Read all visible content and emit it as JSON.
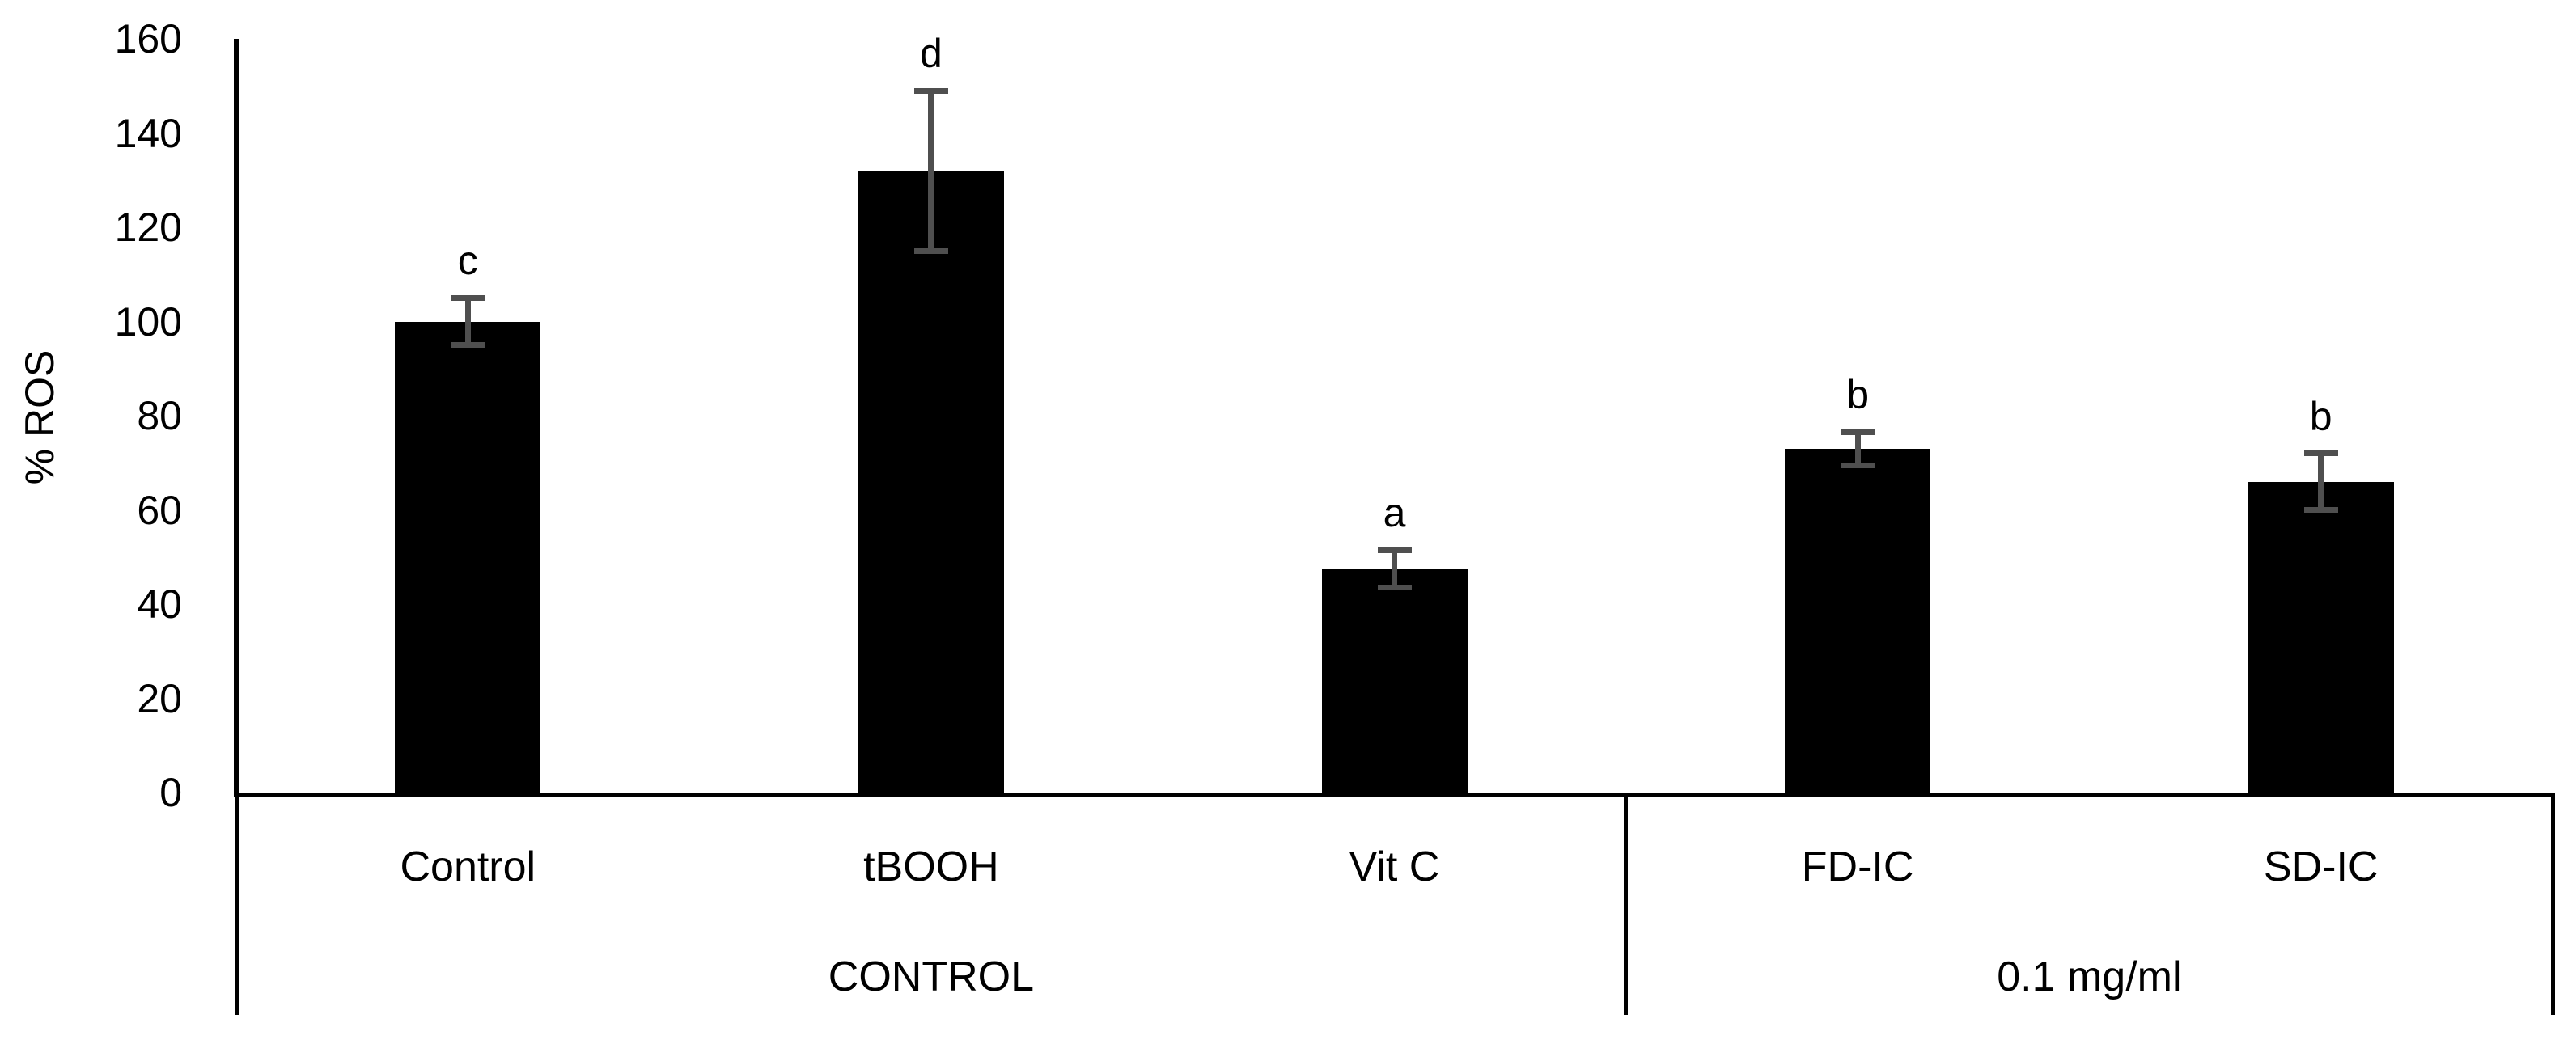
{
  "chart_data": {
    "type": "bar",
    "title": "",
    "xlabel": "",
    "ylabel": "% ROS",
    "ylim": [
      0,
      160
    ],
    "yticks": [
      0,
      20,
      40,
      60,
      80,
      100,
      120,
      140,
      160
    ],
    "grid": false,
    "legend": null,
    "bar_color": "#000000",
    "error_bar_color": "#4f4f4f",
    "axis_color": "#000000",
    "categories": [
      "Control",
      "tBOOH",
      "Vit C",
      "FD-IC",
      "SD-IC"
    ],
    "values": [
      100,
      132,
      47.5,
      73,
      66
    ],
    "errors": [
      5,
      17,
      4,
      3.5,
      6
    ],
    "sig_letters": [
      "c",
      "d",
      "a",
      "b",
      "b"
    ],
    "groups": [
      {
        "label": "CONTROL",
        "span": 3
      },
      {
        "label": "0.1 mg/ml",
        "span": 2
      }
    ]
  }
}
